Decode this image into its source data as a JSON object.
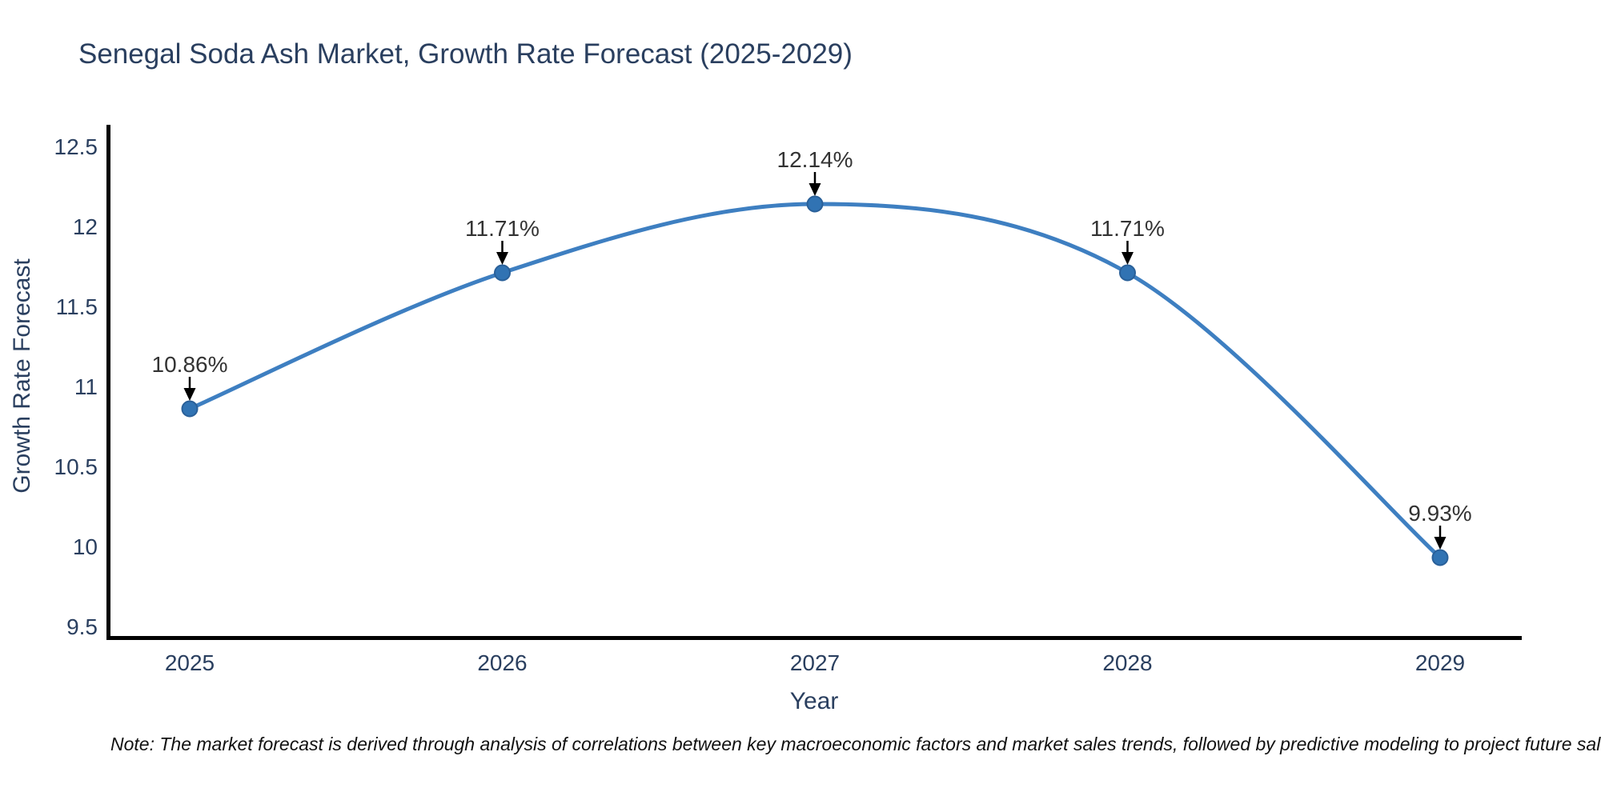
{
  "page": {
    "note": "Note: The market forecast is derived through analysis of correlations between key macroeconomic factors and market sales trends, followed by predictive modeling to project future sales based on forecasts of these key indicators."
  },
  "chart_data": {
    "type": "line",
    "line_shape": "spline",
    "title": "Senegal Soda Ash Market, Growth Rate Forecast (2025-2029)",
    "xlabel": "Year",
    "ylabel": "Growth Rate Forecast",
    "categories": [
      "2025",
      "2026",
      "2027",
      "2028",
      "2029"
    ],
    "series": [
      {
        "name": "Growth Rate Forecast",
        "values": [
          10.86,
          11.71,
          12.14,
          11.71,
          9.93
        ]
      }
    ],
    "point_labels": [
      "10.86%",
      "11.71%",
      "12.14%",
      "11.71%",
      "9.93%"
    ],
    "ylim": [
      9.5,
      12.5
    ],
    "ytick_values": [
      9.5,
      10,
      10.5,
      11,
      11.5,
      12,
      12.5
    ],
    "ytick_labels": [
      "9.5",
      "10",
      "10.5",
      "11",
      "11.5",
      "12",
      "12.5"
    ],
    "grid": false,
    "legend": "none",
    "markers": true,
    "colors": {
      "line": "#3e7fc1",
      "marker_fill": "#3173b3",
      "marker_edge": "#2a6099",
      "axis": "#000000",
      "tick_text": "#2a3f5f",
      "annotation_text": "#333333",
      "annotation_arrow": "#000000",
      "background": "#ffffff"
    }
  }
}
